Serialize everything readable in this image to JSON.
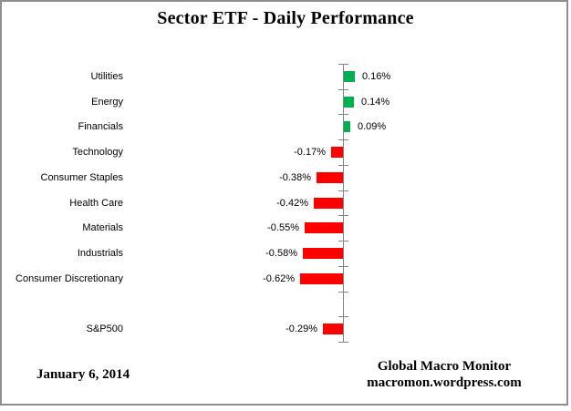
{
  "chart_data": {
    "type": "bar",
    "orientation": "horizontal",
    "title": "Sector ETF - Daily Performance",
    "value_format": "percent",
    "legend": "none",
    "grid": false,
    "categories": [
      "Utilities",
      "Energy",
      "Financials",
      "Technology",
      "Consumer Staples",
      "Health Care",
      "Materials",
      "Industrials",
      "Consumer Discretionary",
      "",
      "S&P500"
    ],
    "values": [
      0.16,
      0.14,
      0.09,
      -0.17,
      -0.38,
      -0.42,
      -0.55,
      -0.58,
      -0.62,
      null,
      -0.29
    ],
    "data_labels": [
      "0.16%",
      "0.14%",
      "0.09%",
      "-0.17%",
      "-0.38%",
      "-0.42%",
      "-0.55%",
      "-0.58%",
      "-0.62%",
      null,
      "-0.29%"
    ],
    "colors": {
      "positive": "#00B050",
      "negative": "#FF0000",
      "axis": "#848484"
    }
  },
  "footer": {
    "date": "January 6, 2014",
    "credit_line1": "Global Macro Monitor",
    "credit_line2": "macromon.wordpress.com"
  }
}
